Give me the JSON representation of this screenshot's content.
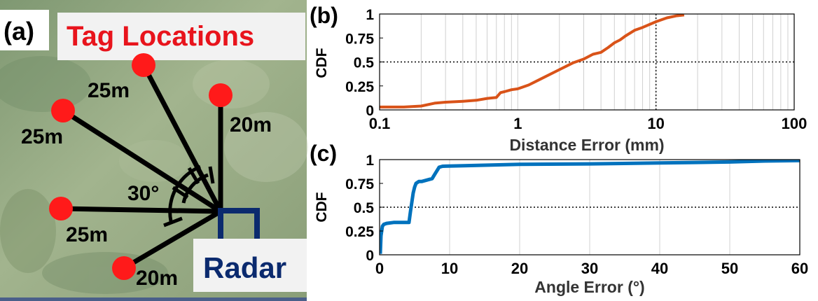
{
  "panel_a": {
    "label": "(a)",
    "title": "Tag Locations",
    "radar_label": "Radar",
    "angle_label": "30°",
    "tags": [
      {
        "distance_label": "25m"
      },
      {
        "distance_label": "25m"
      },
      {
        "distance_label": "20m"
      },
      {
        "distance_label": "25m"
      },
      {
        "distance_label": "20m"
      }
    ],
    "colors": {
      "tag": "#ff1a1a",
      "title": "#e8141c",
      "radar": "#0b2a6e",
      "line": "#000000",
      "field": "#8fa27a"
    }
  },
  "chart_data": [
    {
      "panel_label": "(b)",
      "type": "line",
      "xscale": "log",
      "xlabel": "Distance Error (mm)",
      "ylabel": "CDF",
      "xlim": [
        0.1,
        100
      ],
      "ylim": [
        0,
        1
      ],
      "xticks": [
        0.1,
        1,
        10,
        100
      ],
      "xtick_labels": [
        "0.1",
        "1",
        "10",
        "100"
      ],
      "yticks": [
        0,
        0.25,
        0.5,
        0.75,
        1
      ],
      "ytick_labels": [
        "0",
        "0.25",
        "0.5",
        "0.75",
        "1"
      ],
      "grid": true,
      "reference_lines": {
        "y": 0.5,
        "x": 10
      },
      "color": "#d95319",
      "x": [
        0.1,
        0.15,
        0.2,
        0.25,
        0.3,
        0.4,
        0.5,
        0.6,
        0.7,
        0.75,
        0.8,
        0.9,
        1.0,
        1.2,
        1.5,
        2.0,
        2.5,
        3.0,
        3.5,
        4.0,
        4.5,
        5.0,
        5.5,
        6.0,
        7.0,
        8.0,
        10.0,
        12.0,
        14.0,
        16.0
      ],
      "y": [
        0.03,
        0.03,
        0.04,
        0.07,
        0.08,
        0.09,
        0.1,
        0.12,
        0.13,
        0.18,
        0.19,
        0.21,
        0.22,
        0.26,
        0.33,
        0.42,
        0.49,
        0.53,
        0.58,
        0.6,
        0.65,
        0.7,
        0.73,
        0.77,
        0.83,
        0.86,
        0.92,
        0.96,
        0.98,
        0.99
      ]
    },
    {
      "panel_label": "(c)",
      "type": "line",
      "xlabel": "Angle Error (°)",
      "ylabel": "CDF",
      "xlim": [
        0,
        60
      ],
      "ylim": [
        0,
        1
      ],
      "xticks": [
        0,
        10,
        20,
        30,
        40,
        50,
        60
      ],
      "xtick_labels": [
        "0",
        "10",
        "20",
        "30",
        "40",
        "50",
        "60"
      ],
      "yticks": [
        0,
        0.25,
        0.5,
        0.75,
        1
      ],
      "ytick_labels": [
        "0",
        "0.25",
        "0.5",
        "0.75",
        "1"
      ],
      "grid": true,
      "reference_lines": {
        "y": 0.5
      },
      "color": "#0072bd",
      "x": [
        0.1,
        0.2,
        0.4,
        0.6,
        1.0,
        2.0,
        3.0,
        4.2,
        4.4,
        4.8,
        5.0,
        5.2,
        5.6,
        6.0,
        7.0,
        7.5,
        8.0,
        8.5,
        9.0,
        12,
        20,
        30,
        40,
        45,
        50,
        55,
        60
      ],
      "y": [
        0.01,
        0.2,
        0.3,
        0.32,
        0.33,
        0.34,
        0.34,
        0.34,
        0.45,
        0.65,
        0.71,
        0.75,
        0.77,
        0.77,
        0.79,
        0.8,
        0.86,
        0.92,
        0.93,
        0.935,
        0.95,
        0.955,
        0.965,
        0.97,
        0.975,
        0.985,
        0.99
      ]
    }
  ]
}
